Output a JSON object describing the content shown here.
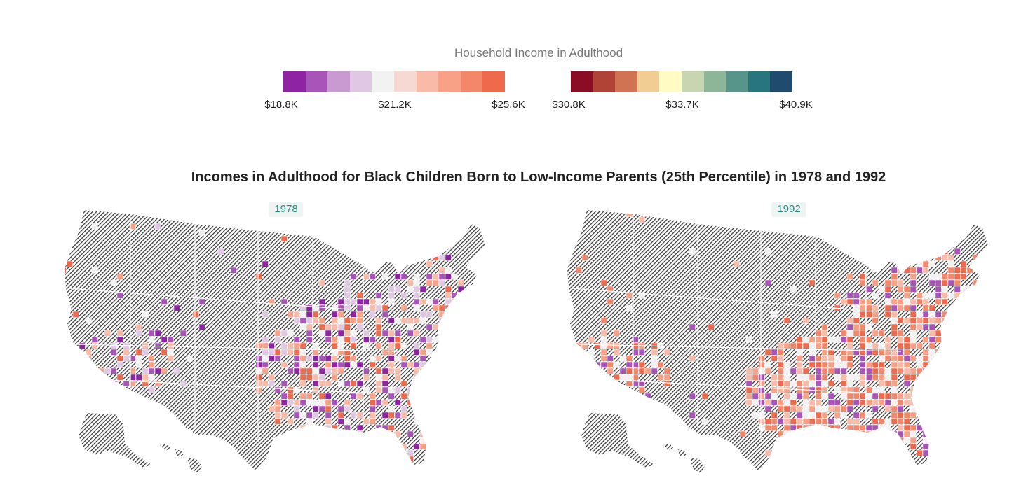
{
  "legend": {
    "title": "Household Income in Adulthood",
    "low_scale": {
      "colors": [
        "#8e24a3",
        "#a954b8",
        "#c99ad1",
        "#e0c8e4",
        "#f2f2f2",
        "#f6d9d2",
        "#f9bba8",
        "#f8a187",
        "#f4866a",
        "#ef6a4c"
      ],
      "ticks": [
        "$18.8K",
        "$21.2K",
        "$25.6K"
      ]
    },
    "high_scale": {
      "colors": [
        "#8a0c25",
        "#b14336",
        "#cf7352",
        "#f1cd93",
        "#fffbc2",
        "#c7d6b1",
        "#8db597",
        "#579489",
        "#29757d",
        "#1f4c6e"
      ],
      "ticks": [
        "$30.8K",
        "$33.7K",
        "$40.9K"
      ]
    }
  },
  "title": "Incomes in Adulthood for Black Children Born to Low-Income Parents (25th Percentile) in 1978 and 1992",
  "maps": [
    {
      "year": "1978",
      "no_data_pattern": "diagonal-hatch",
      "dominant_colors": [
        "#ef6a4c",
        "#f8a187",
        "#f9bba8",
        "#8e24a3",
        "#a954b8",
        "#e0c8e4",
        "#f2f2f2"
      ]
    },
    {
      "year": "1992",
      "no_data_pattern": "diagonal-hatch",
      "dominant_colors": [
        "#ef6a4c",
        "#f4866a",
        "#f8a187",
        "#f9bba8",
        "#f2f2f2",
        "#a954b8"
      ]
    }
  ]
}
